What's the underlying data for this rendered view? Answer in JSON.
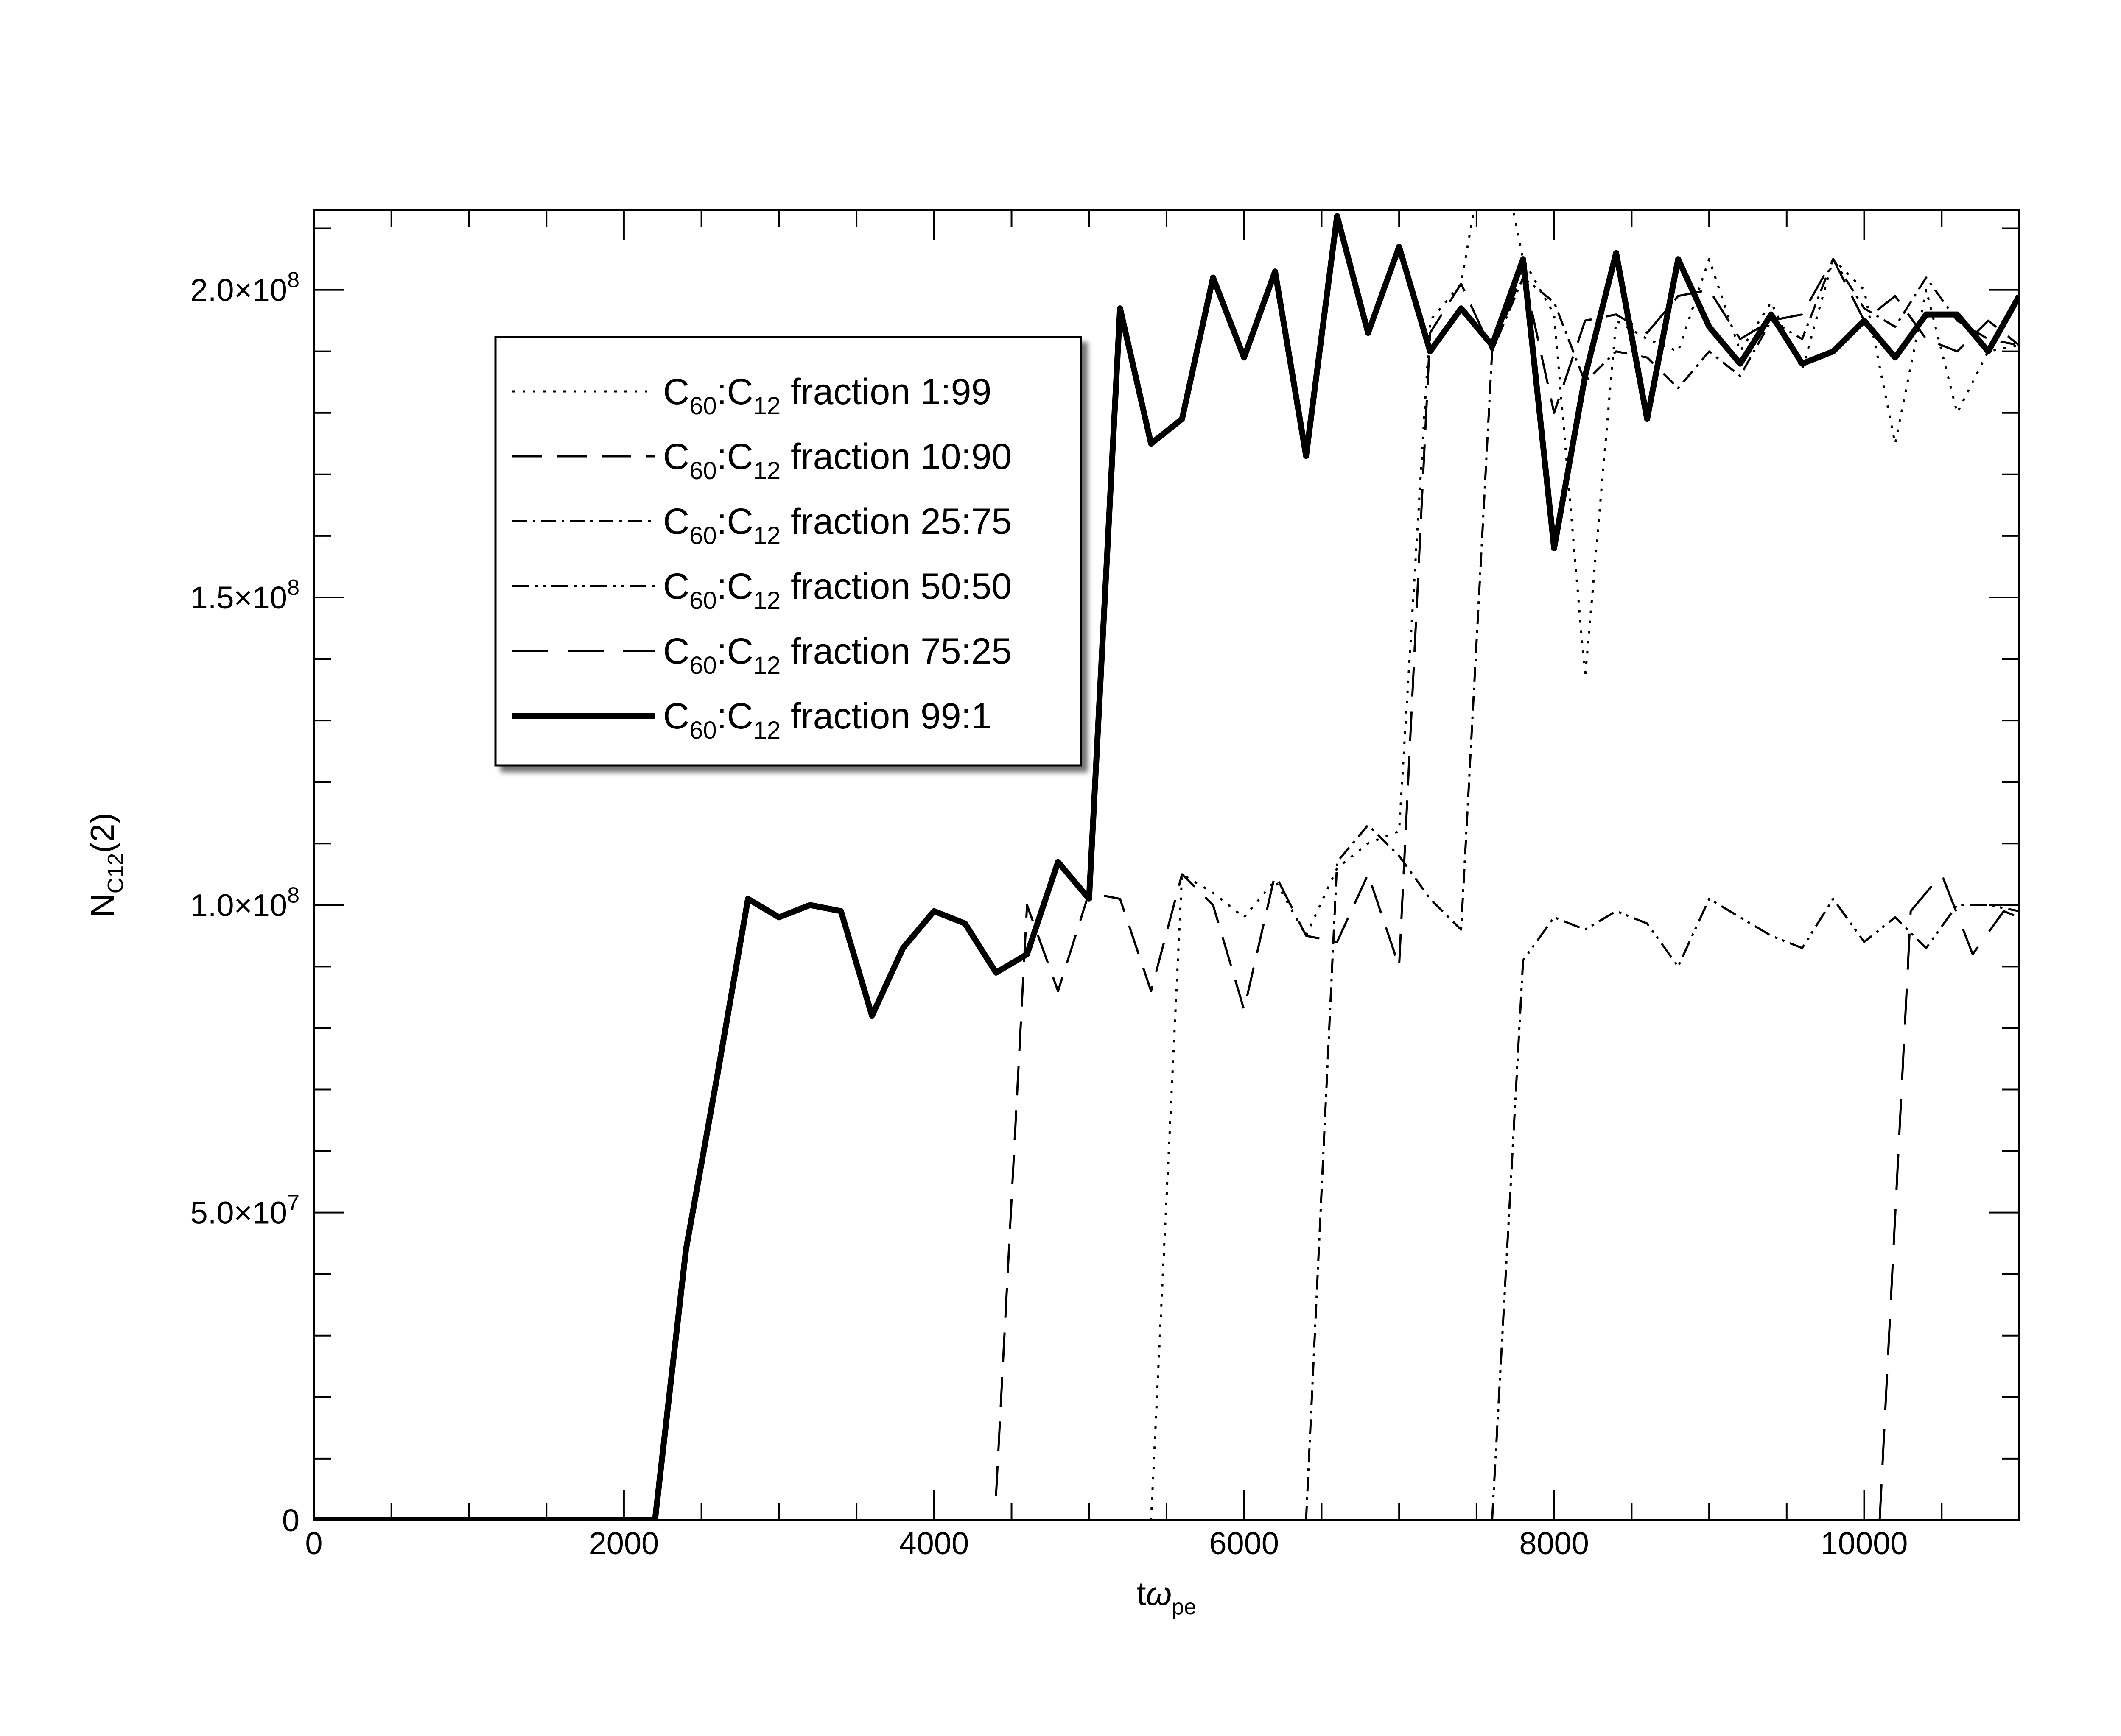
{
  "chart_data": {
    "type": "line",
    "xlabel": {
      "main": "t",
      "greek": "ω",
      "sub": "pe"
    },
    "ylabel": {
      "main": "N",
      "sub": "C12",
      "tail": "(2)"
    },
    "xlim": [
      0,
      11000
    ],
    "ylim": [
      0,
      213000000
    ],
    "xticks": [
      {
        "value": 0,
        "label": "0"
      },
      {
        "value": 2000,
        "label": "2000"
      },
      {
        "value": 4000,
        "label": "4000"
      },
      {
        "value": 6000,
        "label": "6000"
      },
      {
        "value": 8000,
        "label": "8000"
      },
      {
        "value": 10000,
        "label": "10000"
      }
    ],
    "yticks": [
      {
        "value": 0,
        "mant": "0",
        "exp": ""
      },
      {
        "value": 50000000,
        "mant": "5.0×10",
        "exp": "7"
      },
      {
        "value": 100000000,
        "mant": "1.0×10",
        "exp": "8"
      },
      {
        "value": 150000000,
        "mant": "1.5×10",
        "exp": "8"
      },
      {
        "value": 200000000,
        "mant": "2.0×10",
        "exp": "8"
      }
    ],
    "x_minor_step": 500,
    "y_minor_step": 10000000,
    "grid": false,
    "legend_position": "upper-left",
    "series": [
      {
        "name": "1:99",
        "legend": {
          "a": "C",
          "a_sub": "60",
          "colon": ":C",
          "b_sub": "12",
          "rest": " fraction 1:99"
        },
        "dash": "6,18",
        "width": 5,
        "x": [
          5400,
          5600,
          5800,
          6000,
          6200,
          6400,
          6600,
          6800,
          7000,
          7200,
          7400,
          7600,
          7800,
          8000,
          8200,
          8400,
          8600,
          8800,
          9000,
          9200,
          9400,
          9600,
          9800,
          10000,
          10200,
          10400,
          10600,
          10800,
          11000
        ],
        "y": [
          0,
          105000000,
          102000000,
          98000000,
          104000000,
          95000000,
          106000000,
          110000000,
          112000000,
          195000000,
          201000000,
          230000000,
          205000000,
          196000000,
          137000000,
          195000000,
          192000000,
          190000000,
          205000000,
          190000000,
          198000000,
          187000000,
          205000000,
          200000000,
          175000000,
          200000000,
          180000000,
          190000000,
          191000000
        ]
      },
      {
        "name": "10:90",
        "legend": {
          "a": "C",
          "a_sub": "60",
          "colon": ":C",
          "b_sub": "12",
          "rest": " fraction 10:90"
        },
        "dash": "70,35",
        "width": 5,
        "x": [
          4400,
          4600,
          4800,
          5000,
          5200,
          5400,
          5600,
          5800,
          6000,
          6200,
          6400,
          6600,
          6800,
          7000,
          7200,
          7400,
          7600,
          7800,
          8000,
          8200,
          8400,
          8600,
          8800,
          9000,
          9200,
          9400,
          9600,
          9800,
          10000,
          10200,
          10400,
          10600,
          10800,
          11000
        ],
        "y": [
          4000000,
          100000000,
          86000000,
          102000000,
          101000000,
          86000000,
          105000000,
          100000000,
          83000000,
          105000000,
          95000000,
          94000000,
          105000000,
          90000000,
          193000000,
          201000000,
          190000000,
          203000000,
          180000000,
          195000000,
          196000000,
          193000000,
          199000000,
          200000000,
          192000000,
          195000000,
          196000000,
          205000000,
          195000000,
          199000000,
          192000000,
          190000000,
          195000000,
          191000000
        ]
      },
      {
        "name": "25:75",
        "legend": {
          "a": "C",
          "a_sub": "60",
          "colon": ":C",
          "b_sub": "12",
          "rest": " fraction 25:75"
        },
        "dash": "34,14,6,14",
        "width": 5,
        "x": [
          6400,
          6600,
          6800,
          7000,
          7200,
          7400,
          7600,
          7800,
          8000,
          8200,
          8400,
          8600,
          8800,
          9000,
          9200,
          9400,
          9600,
          9800,
          10000,
          10200,
          10400,
          10600,
          10800,
          11000
        ],
        "y": [
          0,
          107000000,
          113000000,
          108000000,
          101000000,
          96000000,
          190000000,
          202000000,
          198000000,
          185000000,
          190000000,
          189000000,
          184000000,
          190000000,
          186000000,
          195000000,
          192000000,
          205000000,
          197000000,
          194000000,
          202000000,
          195000000,
          192000000,
          191000000
        ]
      },
      {
        "name": "50:50",
        "legend": {
          "a": "C",
          "a_sub": "60",
          "colon": ":C",
          "b_sub": "12",
          "rest": " fraction 50:50"
        },
        "dash": "40,14,6,12,6,14",
        "width": 5,
        "x": [
          7600,
          7800,
          8000,
          8200,
          8400,
          8600,
          8800,
          9000,
          9200,
          9400,
          9600,
          9800,
          10000,
          10200,
          10400,
          10600,
          10800,
          11000
        ],
        "y": [
          0,
          91000000,
          98000000,
          96000000,
          99000000,
          97000000,
          90000000,
          101000000,
          98000000,
          95000000,
          93000000,
          101000000,
          94000000,
          98000000,
          93000000,
          100000000,
          100000000,
          99000000
        ]
      },
      {
        "name": "75:25",
        "legend": {
          "a": "C",
          "a_sub": "60",
          "colon": ":C",
          "b_sub": "12",
          "rest": " fraction 75:25"
        },
        "dash": "85,45",
        "width": 5,
        "x": [
          10100,
          10300,
          10500,
          10700,
          10900,
          11000
        ],
        "y": [
          0,
          99000000,
          105000000,
          92000000,
          99000000,
          98000000
        ]
      },
      {
        "name": "99:1",
        "legend": {
          "a": "C",
          "a_sub": "60",
          "colon": ":C",
          "b_sub": "12",
          "rest": " fraction 99:1"
        },
        "dash": "",
        "width": 14,
        "x": [
          0,
          200,
          400,
          600,
          800,
          1000,
          1200,
          1400,
          1600,
          1800,
          2000,
          2200,
          2400,
          2600,
          2800,
          3000,
          3200,
          3400,
          3600,
          3800,
          4000,
          4200,
          4400,
          4600,
          4800,
          5000,
          5200,
          5400,
          5600,
          5800,
          6000,
          6200,
          6400,
          6600,
          6800,
          7000,
          7200,
          7400,
          7600,
          7800,
          8000,
          8200,
          8400,
          8600,
          8800,
          9000,
          9200,
          9400,
          9600,
          9800,
          10000,
          10200,
          10400,
          10600,
          10800,
          11000
        ],
        "y": [
          0,
          0,
          0,
          0,
          0,
          0,
          0,
          0,
          0,
          0,
          0,
          0,
          44000000,
          72000000,
          101000000,
          98000000,
          100000000,
          99000000,
          82000000,
          93000000,
          99000000,
          97000000,
          89000000,
          92000000,
          107000000,
          101000000,
          197000000,
          175000000,
          179000000,
          202000000,
          189000000,
          203000000,
          173000000,
          212000000,
          193000000,
          207000000,
          190000000,
          197000000,
          191000000,
          205000000,
          158000000,
          186000000,
          206000000,
          179000000,
          205000000,
          194000000,
          188000000,
          196000000,
          188000000,
          190000000,
          195000000,
          189000000,
          196000000,
          196000000,
          190000000,
          199000000
        ]
      }
    ]
  }
}
